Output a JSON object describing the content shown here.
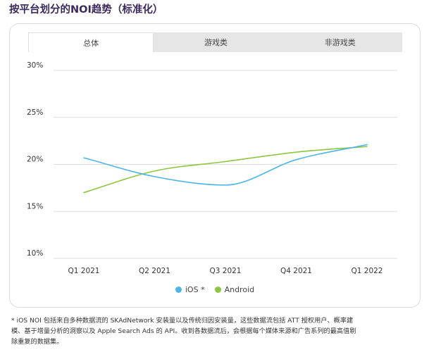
{
  "page_title": "按平台划分的NOI趋势（标准化）",
  "tabs": [
    {
      "label": "总体",
      "active": true
    },
    {
      "label": "游戏类",
      "active": false
    },
    {
      "label": "非游戏类",
      "active": false
    }
  ],
  "colors": {
    "ios": "#4db6e8",
    "android": "#8dc63f"
  },
  "chart_data": {
    "type": "line",
    "categories": [
      "Q1 2021",
      "Q2 2021",
      "Q3 2021",
      "Q4 2021",
      "Q1 2022"
    ],
    "y_ticks": [
      "10%",
      "15%",
      "20%",
      "25%",
      "30%"
    ],
    "ylim": [
      10,
      30
    ],
    "grid": true,
    "legend_position": "bottom",
    "series": [
      {
        "name": "iOS *",
        "color": "#4db6e8",
        "values": [
          20.7,
          18.7,
          17.8,
          20.5,
          22.1
        ]
      },
      {
        "name": "Android",
        "color": "#8dc63f",
        "values": [
          17.0,
          19.3,
          20.3,
          21.3,
          21.9
        ]
      }
    ]
  },
  "footnote": {
    "line1": "* iOS NOI 包括来自多种数据流的 SKAdNetwork 安装量以及传统归因安装量，这些数据流包括 ATT 授权用户、概率建",
    "line2": "模、基于增量分析的洞察以及 Apple Search Ads 的 API。收到各数据流后，会根据每个媒体来源和广告系列的最高值剔",
    "line3": "除重复的数据集。"
  }
}
